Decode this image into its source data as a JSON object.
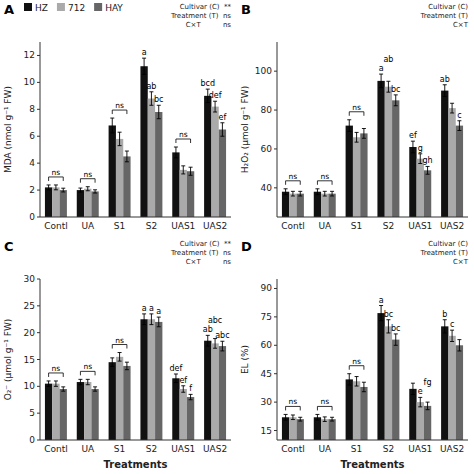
{
  "chart_data": [
    {
      "type": "bar",
      "title": "A",
      "ylabel": "MDA (nmol g⁻¹ FW)",
      "categories": [
        "Contl",
        "UA",
        "S1",
        "S2",
        "UAS1",
        "UAS2"
      ],
      "series": [
        {
          "name": "HZ",
          "color": "#111111",
          "values": [
            2.2,
            2.0,
            6.8,
            11.2,
            4.8,
            9.0
          ],
          "errors": [
            0.18,
            0.15,
            0.55,
            0.6,
            0.4,
            0.5
          ],
          "letters": [
            null,
            null,
            null,
            "a",
            null,
            "bcd"
          ]
        },
        {
          "name": "712",
          "color": "#aaaaaa",
          "values": [
            2.2,
            2.1,
            5.8,
            8.8,
            3.5,
            8.2
          ],
          "errors": [
            0.18,
            0.15,
            0.5,
            0.5,
            0.3,
            0.4
          ],
          "letters": [
            null,
            null,
            null,
            "ab",
            null,
            "def"
          ]
        },
        {
          "name": "HAY",
          "color": "#666666",
          "values": [
            2.0,
            1.9,
            4.5,
            7.8,
            3.4,
            6.5
          ],
          "errors": [
            0.14,
            0.12,
            0.4,
            0.5,
            0.3,
            0.5
          ],
          "letters": [
            null,
            null,
            null,
            "bc",
            null,
            "ef"
          ]
        }
      ],
      "ylim": [
        0,
        13
      ],
      "yticks": [
        0,
        2,
        4,
        6,
        8,
        10,
        12
      ],
      "grid": false,
      "legend": "upper left",
      "stats_text": [
        "Cultivar (C)  **",
        "Treatment (T)  ns",
        "C×T          ns"
      ],
      "annotations": [
        {
          "text": "ns",
          "category": "Contl"
        },
        {
          "text": "ns",
          "category": "UA"
        },
        {
          "text": "ns",
          "category": "S1"
        },
        {
          "text": "ns",
          "category": "UAS1"
        }
      ]
    },
    {
      "type": "bar",
      "title": "B",
      "ylabel": "H₂O₂ (μmol g⁻¹ FW)",
      "categories": [
        "Contl",
        "UA",
        "S1",
        "S2",
        "UAS1",
        "UAS2"
      ],
      "series": [
        {
          "color": "#111111",
          "values": [
            38,
            38,
            72,
            95,
            61,
            90
          ],
          "errors": [
            1.5,
            1.5,
            3.0,
            3.5,
            3.0,
            3.0
          ],
          "letters": [
            null,
            null,
            null,
            "a",
            "ef",
            "ab"
          ]
        },
        {
          "color": "#aaaaaa",
          "values": [
            37,
            37,
            66,
            92,
            55,
            81
          ],
          "errors": [
            1.2,
            1.2,
            2.5,
            2.8,
            2.5,
            2.5
          ],
          "letters": [
            null,
            null,
            null,
            "ab",
            "g",
            null
          ]
        },
        {
          "color": "#666666",
          "values": [
            37,
            37,
            68,
            85,
            49,
            72
          ],
          "errors": [
            1.2,
            1.2,
            2.5,
            2.8,
            2.0,
            2.5
          ],
          "letters": [
            null,
            null,
            null,
            "bc",
            "gh",
            "c"
          ]
        }
      ],
      "ylim": [
        25,
        115
      ],
      "yticks": [
        40,
        60,
        80,
        100
      ],
      "grid": false,
      "stats_text": [
        "Cultivar (C)",
        "Treatment (T)",
        "C×T"
      ],
      "annotations": [
        {
          "text": "ns",
          "category": "Contl"
        },
        {
          "text": "ns",
          "category": "UA"
        },
        {
          "text": "ns",
          "category": "S1"
        }
      ]
    },
    {
      "type": "bar",
      "title": "C",
      "ylabel": "O₂⁻ (μmol g⁻¹ FW)",
      "xlabel": "Treatments",
      "categories": [
        "Contl",
        "UA",
        "S1",
        "S2",
        "UAS1",
        "UAS2"
      ],
      "series": [
        {
          "color": "#111111",
          "values": [
            10.5,
            10.8,
            14.5,
            22.5,
            11.5,
            18.5
          ],
          "errors": [
            0.5,
            0.5,
            0.8,
            1.0,
            0.8,
            1.0
          ],
          "letters": [
            null,
            null,
            null,
            "a",
            "def",
            "ab"
          ]
        },
        {
          "color": "#aaaaaa",
          "values": [
            10.5,
            10.8,
            15.5,
            22.5,
            9.5,
            18.0
          ],
          "errors": [
            0.5,
            0.5,
            0.8,
            1.0,
            0.6,
            0.9
          ],
          "letters": [
            null,
            null,
            null,
            "a",
            "ef",
            "abc"
          ]
        },
        {
          "color": "#666666",
          "values": [
            9.5,
            9.5,
            13.8,
            22.0,
            8.0,
            17.5
          ],
          "errors": [
            0.4,
            0.4,
            0.7,
            0.9,
            0.5,
            0.9
          ],
          "letters": [
            null,
            null,
            null,
            "a",
            "f",
            "abc"
          ]
        }
      ],
      "ylim": [
        0,
        30
      ],
      "yticks": [
        0,
        5,
        10,
        15,
        20,
        25,
        30
      ],
      "grid": false,
      "stats_text": [
        "Cultivar (C)  **",
        "Treatment (T)  ns",
        "C×T          ns"
      ],
      "annotations": [
        {
          "text": "ns",
          "category": "Contl"
        },
        {
          "text": "ns",
          "category": "UA"
        },
        {
          "text": "ns",
          "category": "S1"
        }
      ]
    },
    {
      "type": "bar",
      "title": "D",
      "ylabel": "EL (%)",
      "xlabel": "Treatments",
      "categories": [
        "Contl",
        "UA",
        "S1",
        "S2",
        "UAS1",
        "UAS2"
      ],
      "series": [
        {
          "color": "#111111",
          "values": [
            22,
            22,
            42,
            77,
            37,
            70
          ],
          "errors": [
            1.5,
            1.5,
            3.0,
            4.0,
            3.0,
            3.5
          ],
          "letters": [
            null,
            null,
            null,
            "a",
            null,
            "b"
          ]
        },
        {
          "color": "#aaaaaa",
          "values": [
            22,
            21,
            41,
            70,
            30,
            65
          ],
          "errors": [
            1.2,
            1.2,
            2.5,
            3.5,
            2.5,
            3.0
          ],
          "letters": [
            null,
            null,
            null,
            "bc",
            "e",
            "c"
          ]
        },
        {
          "color": "#666666",
          "values": [
            21,
            21,
            38,
            63,
            28,
            60
          ],
          "errors": [
            1.0,
            1.0,
            2.5,
            3.0,
            2.0,
            3.0
          ],
          "letters": [
            null,
            null,
            null,
            "bc",
            "fg",
            null
          ]
        }
      ],
      "ylim": [
        10,
        95
      ],
      "yticks": [
        15,
        30,
        45,
        60,
        75,
        90
      ],
      "grid": false,
      "stats_text": [
        "Cultivar (C)",
        "Treatment (T)",
        "C×T"
      ],
      "annotations": [
        {
          "text": "ns",
          "category": "Contl"
        },
        {
          "text": "ns",
          "category": "UA"
        },
        {
          "text": "ns",
          "category": "S1"
        }
      ]
    }
  ]
}
